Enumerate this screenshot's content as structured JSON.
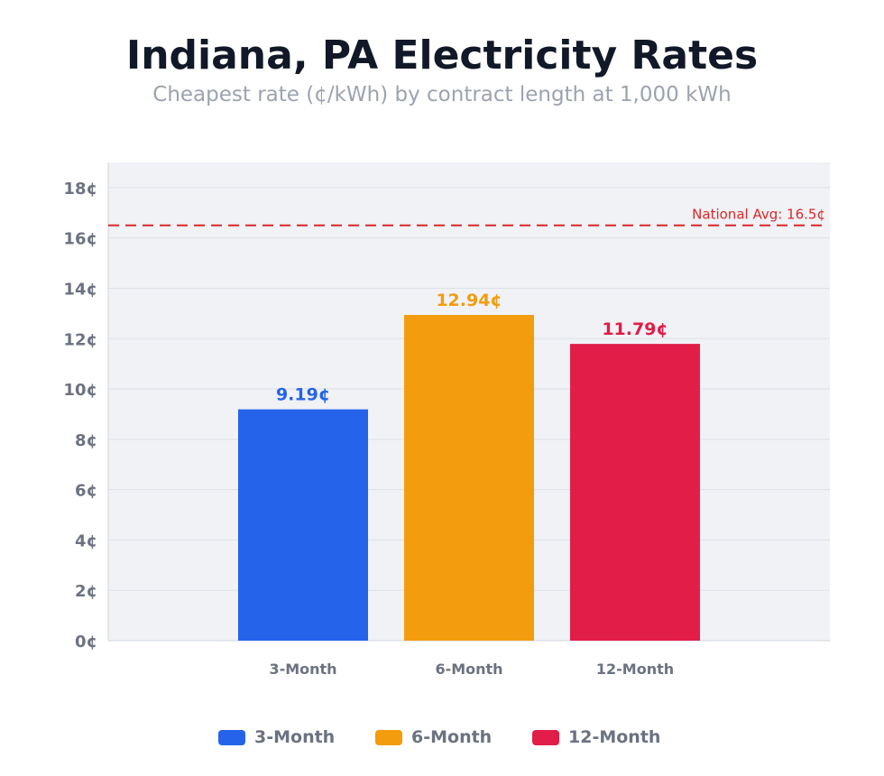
{
  "chart_data": {
    "type": "bar",
    "title": "Indiana, PA Electricity Rates",
    "subtitle": "Cheapest rate (¢/kWh) by contract length at 1,000 kWh",
    "categories": [
      "3-Month",
      "6-Month",
      "12-Month"
    ],
    "values": [
      9.19,
      12.94,
      11.79
    ],
    "value_labels": [
      "9.19¢",
      "12.94¢",
      "11.79¢"
    ],
    "colors": [
      "#2563eb",
      "#f39c0e",
      "#e11d48"
    ],
    "xlabel": "",
    "ylabel": "",
    "ylim": [
      0,
      19
    ],
    "yticks": [
      0,
      2,
      4,
      6,
      8,
      10,
      12,
      14,
      16,
      18
    ],
    "ytick_labels": [
      "0¢",
      "2¢",
      "4¢",
      "6¢",
      "8¢",
      "10¢",
      "12¢",
      "14¢",
      "16¢",
      "18¢"
    ],
    "grid": true,
    "reference_line": {
      "value": 16.5,
      "label": "National Avg: 16.5¢",
      "color": "#dc2626",
      "style": "dashed"
    },
    "legend": {
      "placement": "bottom",
      "entries": [
        "3-Month",
        "6-Month",
        "12-Month"
      ]
    }
  }
}
